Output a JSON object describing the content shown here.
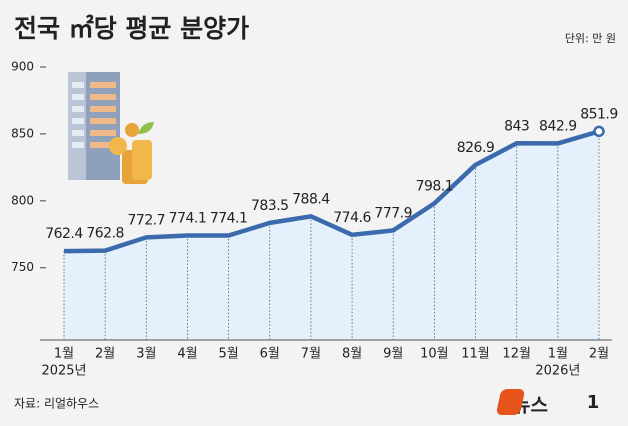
{
  "chart_data": {
    "type": "line",
    "title": "전국 ㎡당 평균 분양가",
    "unit": "단위: 만 원",
    "source": "자료: 리얼하우스",
    "categories": [
      "1월",
      "2월",
      "3월",
      "4월",
      "5월",
      "6월",
      "7월",
      "8월",
      "9월",
      "10월",
      "11월",
      "12월",
      "1월",
      "2월"
    ],
    "year_labels": [
      "2025년",
      null,
      null,
      null,
      null,
      null,
      null,
      null,
      null,
      null,
      null,
      null,
      "2026년",
      null
    ],
    "values": [
      762.4,
      762.8,
      772.7,
      774.1,
      774.1,
      783.5,
      788.4,
      774.6,
      777.9,
      798.1,
      826.9,
      843,
      842.9,
      851.9
    ],
    "color": "#3c6bad",
    "area_color": "#e4f0fb",
    "ylim": [
      696,
      900
    ],
    "yticks": [
      750,
      800,
      850,
      900
    ],
    "grid": false
  },
  "logo": [
    "뉴스",
    "1"
  ]
}
